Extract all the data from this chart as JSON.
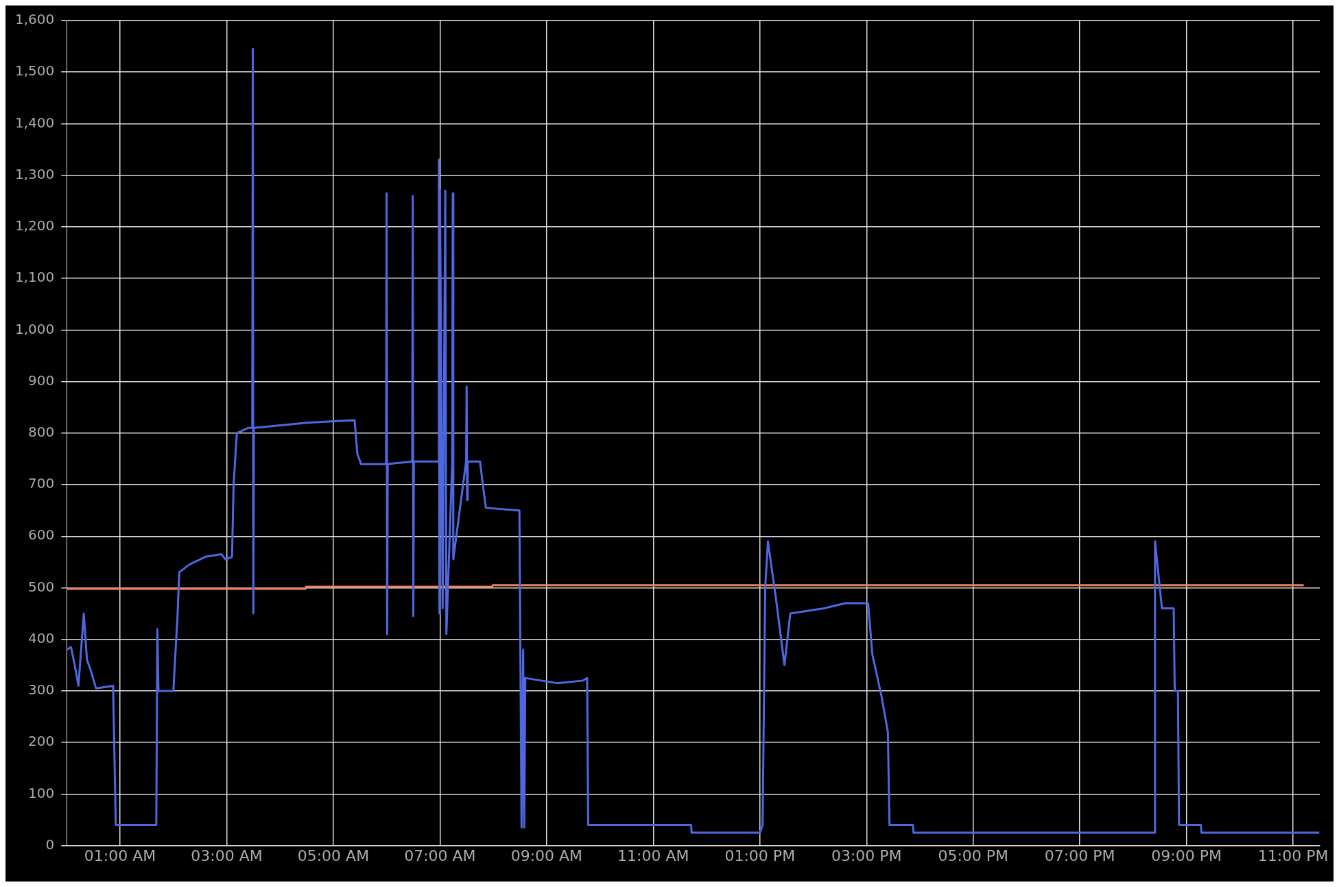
{
  "chart_data": {
    "type": "line",
    "xlim": [
      0,
      23.5
    ],
    "ylim": [
      0,
      1600
    ],
    "xticks": [
      {
        "value": 1,
        "label": "01:00 AM"
      },
      {
        "value": 3,
        "label": "03:00 AM"
      },
      {
        "value": 5,
        "label": "05:00 AM"
      },
      {
        "value": 7,
        "label": "07:00 AM"
      },
      {
        "value": 9,
        "label": "09:00 AM"
      },
      {
        "value": 11,
        "label": "11:00 AM"
      },
      {
        "value": 13,
        "label": "01:00 PM"
      },
      {
        "value": 15,
        "label": "03:00 PM"
      },
      {
        "value": 17,
        "label": "05:00 PM"
      },
      {
        "value": 19,
        "label": "07:00 PM"
      },
      {
        "value": 21,
        "label": "09:00 PM"
      },
      {
        "value": 23,
        "label": "11:00 PM"
      }
    ],
    "yticks": [
      0,
      100,
      200,
      300,
      400,
      500,
      600,
      700,
      800,
      900,
      {
        "value": 1000,
        "label": "1,000"
      },
      {
        "value": 1100,
        "label": "1,100"
      },
      {
        "value": 1200,
        "label": "1,200"
      },
      {
        "value": 1300,
        "label": "1,300"
      },
      {
        "value": 1400,
        "label": "1,400"
      },
      {
        "value": 1500,
        "label": "1,500"
      },
      {
        "value": 1600,
        "label": "1,600"
      }
    ],
    "grid": true,
    "legend": false,
    "marker": "none",
    "line_style": "solid",
    "series": [
      {
        "color": "#4f68e0",
        "x": [
          0,
          0.08,
          0.15,
          0.22,
          0.32,
          0.38,
          0.45,
          0.55,
          0.87,
          0.92,
          1.68,
          1.7,
          1.72,
          2.0,
          2.08,
          2.11,
          2.3,
          2.6,
          2.9,
          2.98,
          3.1,
          3.13,
          3.19,
          3.4,
          3.48,
          3.49,
          3.5,
          3.51,
          4.5,
          5.4,
          5.45,
          5.52,
          5.99,
          6.0,
          6.01,
          6.02,
          6.48,
          6.49,
          6.5,
          6.51,
          6.97,
          6.98,
          6.99,
          7.0,
          7.05,
          7.1,
          7.12,
          7.23,
          7.24,
          7.25,
          7.49,
          7.5,
          7.51,
          7.52,
          7.75,
          7.86,
          8.49,
          8.53,
          8.56,
          8.58,
          8.6,
          9.2,
          9.68,
          9.76,
          9.78,
          11.71,
          11.72,
          13.0,
          13.05,
          13.1,
          13.15,
          13.3,
          13.46,
          13.57,
          14.2,
          14.6,
          15.03,
          15.11,
          15.28,
          15.4,
          15.43,
          15.87,
          15.88,
          20.4,
          20.41,
          20.54,
          20.76,
          20.78,
          20.84,
          20.86,
          21.27,
          21.28,
          23.49
        ],
        "values": [
          380,
          385,
          350,
          310,
          450,
          360,
          340,
          305,
          310,
          40,
          40,
          420,
          300,
          300,
          450,
          530,
          545,
          560,
          565,
          555,
          560,
          700,
          800,
          810,
          810,
          1545,
          450,
          810,
          820,
          825,
          760,
          740,
          740,
          1265,
          410,
          740,
          745,
          1260,
          445,
          745,
          745,
          1330,
          450,
          1270,
          460,
          1270,
          410,
          745,
          1265,
          555,
          745,
          890,
          670,
          745,
          745,
          655,
          650,
          35,
          380,
          35,
          325,
          315,
          320,
          325,
          40,
          40,
          25,
          25,
          40,
          500,
          590,
          480,
          350,
          450,
          460,
          470,
          470,
          370,
          290,
          220,
          40,
          40,
          25,
          25,
          590,
          460,
          460,
          300,
          300,
          40,
          40,
          25,
          25
        ]
      },
      {
        "color": "#e8845a",
        "x": [
          0,
          4.48,
          4.49,
          7.98,
          7.99,
          23.2
        ],
        "values": [
          498,
          498,
          502,
          502,
          505,
          505
        ]
      }
    ]
  }
}
